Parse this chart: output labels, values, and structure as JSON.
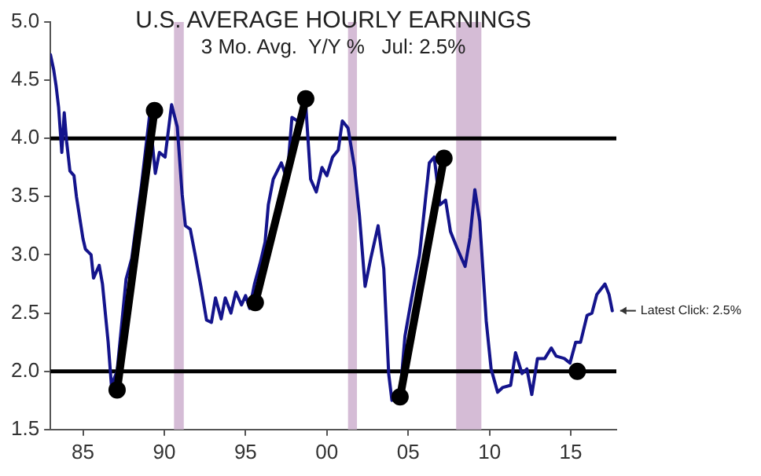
{
  "chart_data": {
    "type": "line",
    "title": "U.S. AVERAGE HOURLY EARNINGS",
    "subtitle": "3 Mo. Avg.  Y/Y %   Jul: 2.5%",
    "xlim": [
      1983,
      2017.8
    ],
    "xticks": [
      {
        "value": 1985,
        "label": "85"
      },
      {
        "value": 1990,
        "label": "90"
      },
      {
        "value": 1995,
        "label": "95"
      },
      {
        "value": 2000,
        "label": "00"
      },
      {
        "value": 2005,
        "label": "05"
      },
      {
        "value": 2010,
        "label": "10"
      },
      {
        "value": 2015,
        "label": "15"
      }
    ],
    "ylim": [
      1.5,
      5.0
    ],
    "yticks": [
      {
        "value": 1.5,
        "label": "1.5"
      },
      {
        "value": 2,
        "label": "2.0"
      },
      {
        "value": 2.5,
        "label": "2.5"
      },
      {
        "value": 3,
        "label": "3.0"
      },
      {
        "value": 3.5,
        "label": "3.5"
      },
      {
        "value": 4,
        "label": "4.0"
      },
      {
        "value": 4.5,
        "label": "4.5"
      },
      {
        "value": 5,
        "label": "5.0"
      }
    ],
    "grid": false,
    "legend": false,
    "series": [
      {
        "color": "#14148c",
        "marker": "none",
        "x": [
          1983.0,
          1983.2,
          1983.35,
          1983.5,
          1983.7,
          1983.85,
          1984.0,
          1984.2,
          1984.45,
          1984.6,
          1985.0,
          1985.15,
          1985.5,
          1985.65,
          1986.0,
          1986.2,
          1986.55,
          1986.75,
          1987.1,
          1987.65,
          1988.0,
          1988.6,
          1989.1,
          1989.45,
          1989.7,
          1990.05,
          1990.45,
          1990.8,
          1991.1,
          1991.3,
          1991.6,
          1991.9,
          1992.25,
          1992.6,
          1992.9,
          1993.15,
          1993.5,
          1993.75,
          1994.1,
          1994.4,
          1994.75,
          1995.0,
          1995.25,
          1995.55,
          1995.9,
          1996.2,
          1996.4,
          1996.7,
          1997.2,
          1997.55,
          1997.85,
          1998.2,
          1998.7,
          1999.0,
          1999.35,
          1999.7,
          2000.0,
          2000.35,
          2000.7,
          2000.95,
          2001.3,
          2001.7,
          2002.0,
          2002.35,
          2002.7,
          2003.15,
          2003.5,
          2003.8,
          2004.0,
          2004.2,
          2004.5,
          2004.8,
          2005.2,
          2005.7,
          2006.3,
          2006.6,
          2006.95,
          2007.3,
          2007.6,
          2008.0,
          2008.5,
          2008.8,
          2009.1,
          2009.4,
          2009.8,
          2010.1,
          2010.5,
          2010.8,
          2011.3,
          2011.6,
          2012.0,
          2012.3,
          2012.6,
          2012.95,
          2013.4,
          2013.8,
          2014.1,
          2014.6,
          2014.95,
          2015.3,
          2015.6,
          2016.0,
          2016.3,
          2016.6,
          2017.1,
          2017.35,
          2017.55
        ],
        "values": [
          4.72,
          4.59,
          4.45,
          4.27,
          3.88,
          4.22,
          3.97,
          3.72,
          3.68,
          3.5,
          3.14,
          3.05,
          3.0,
          2.8,
          2.91,
          2.75,
          2.25,
          1.88,
          2.0,
          2.79,
          2.97,
          3.6,
          4.2,
          3.7,
          3.88,
          3.84,
          4.29,
          4.1,
          3.52,
          3.25,
          3.22,
          3.0,
          2.73,
          2.44,
          2.42,
          2.63,
          2.45,
          2.63,
          2.5,
          2.68,
          2.57,
          2.65,
          2.54,
          2.75,
          2.93,
          3.11,
          3.43,
          3.65,
          3.79,
          3.65,
          4.18,
          4.15,
          4.29,
          3.65,
          3.54,
          3.75,
          3.68,
          3.84,
          3.9,
          4.15,
          4.09,
          3.75,
          3.34,
          2.73,
          2.97,
          3.25,
          2.88,
          1.98,
          1.75,
          1.82,
          1.8,
          2.3,
          2.62,
          3.0,
          3.79,
          3.84,
          3.43,
          3.47,
          3.2,
          3.06,
          2.9,
          3.15,
          3.56,
          3.29,
          2.43,
          2.02,
          1.82,
          1.86,
          1.88,
          2.16,
          1.98,
          2.02,
          1.8,
          2.11,
          2.11,
          2.2,
          2.13,
          2.11,
          2.07,
          2.25,
          2.25,
          2.48,
          2.5,
          2.66,
          2.75,
          2.66,
          2.52
        ]
      },
      {
        "color": "#000000",
        "marker": "circle",
        "x": [
          1987.1,
          1989.4
        ],
        "values": [
          1.84,
          4.24
        ]
      },
      {
        "color": "#000000",
        "marker": "circle",
        "x": [
          1995.6,
          1998.7
        ],
        "values": [
          2.59,
          4.34
        ]
      },
      {
        "color": "#000000",
        "marker": "circle",
        "x": [
          2004.5,
          2007.2
        ],
        "values": [
          1.78,
          3.83
        ]
      },
      {
        "type": "scatter",
        "color": "#000000",
        "marker": "circle",
        "x": [
          2015.4
        ],
        "values": [
          2.0
        ]
      }
    ],
    "ref_lines": [
      {
        "axis": "y",
        "value": 4,
        "color": "#000000"
      },
      {
        "axis": "y",
        "value": 2,
        "color": "#000000"
      }
    ],
    "bands": [
      {
        "axis": "x",
        "from": 1990.6,
        "to": 1991.2,
        "color": "#d5bcd6"
      },
      {
        "axis": "x",
        "from": 2001.3,
        "to": 2001.85,
        "color": "#d5bcd6"
      },
      {
        "axis": "x",
        "from": 2007.95,
        "to": 2009.5,
        "color": "#d5bcd6"
      }
    ],
    "annotations": [
      {
        "text": "Latest Click: 2.5%",
        "x": 2017.55,
        "y": 2.52
      }
    ]
  }
}
